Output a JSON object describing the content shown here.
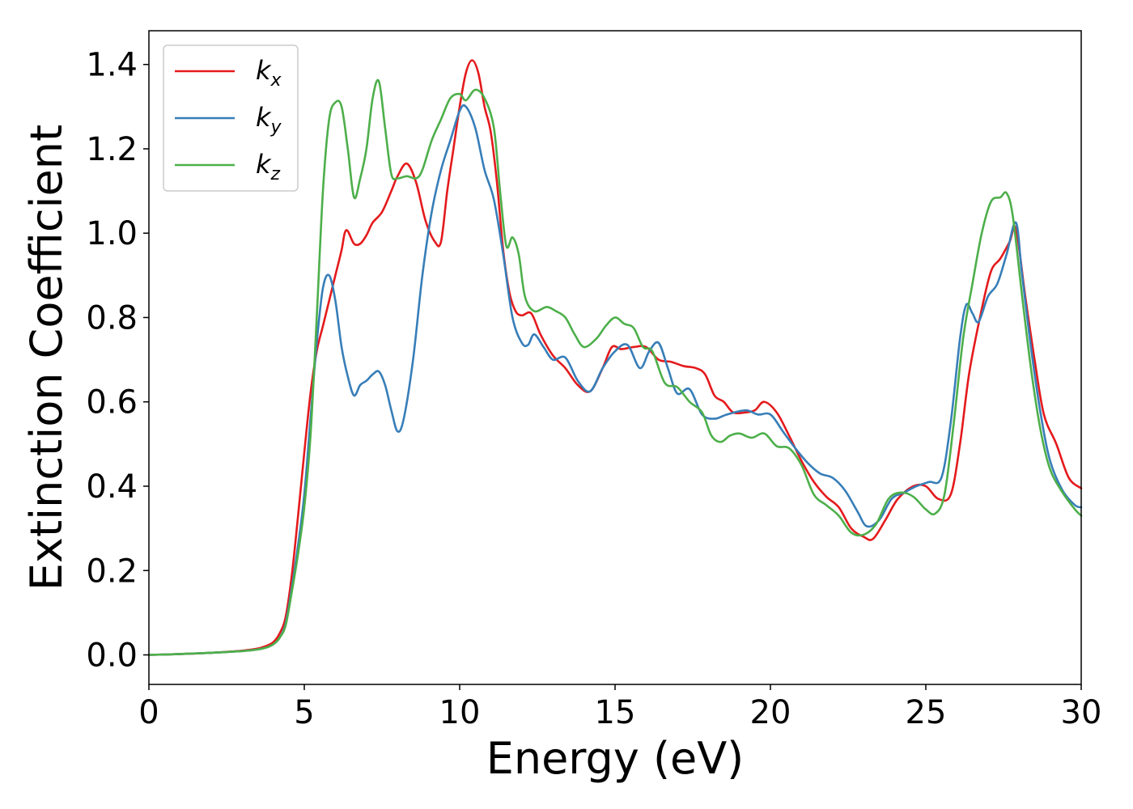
{
  "chart_data": {
    "type": "line",
    "title": "",
    "xlabel": "Energy (eV)",
    "ylabel": "Extinction Coefficient",
    "xlim": [
      0,
      30
    ],
    "ylim": [
      -0.07,
      1.48
    ],
    "xticks": [
      0,
      5,
      10,
      15,
      20,
      25,
      30
    ],
    "xtick_labels": [
      "0",
      "5",
      "10",
      "15",
      "20",
      "25",
      "30"
    ],
    "yticks": [
      0.0,
      0.2,
      0.4,
      0.6,
      0.8,
      1.0,
      1.2,
      1.4
    ],
    "ytick_labels": [
      "0.0",
      "0.2",
      "0.4",
      "0.6",
      "0.8",
      "1.0",
      "1.2",
      "1.4"
    ],
    "grid": false,
    "legend_position": "top-left",
    "series": [
      {
        "name": "k",
        "subscript": "x",
        "color": "#e41a1c",
        "points": [
          [
            0,
            0.0
          ],
          [
            1,
            0.002
          ],
          [
            2,
            0.005
          ],
          [
            3,
            0.01
          ],
          [
            3.5,
            0.015
          ],
          [
            3.8,
            0.022
          ],
          [
            4.0,
            0.03
          ],
          [
            4.2,
            0.05
          ],
          [
            4.4,
            0.09
          ],
          [
            4.6,
            0.19
          ],
          [
            4.8,
            0.33
          ],
          [
            5.0,
            0.48
          ],
          [
            5.2,
            0.62
          ],
          [
            5.4,
            0.72
          ],
          [
            5.6,
            0.78
          ],
          [
            5.8,
            0.84
          ],
          [
            6.0,
            0.9
          ],
          [
            6.2,
            0.96
          ],
          [
            6.3,
            1.0
          ],
          [
            6.4,
            1.005
          ],
          [
            6.6,
            0.975
          ],
          [
            6.8,
            0.975
          ],
          [
            7.0,
            0.995
          ],
          [
            7.2,
            1.025
          ],
          [
            7.5,
            1.05
          ],
          [
            7.8,
            1.1
          ],
          [
            8.0,
            1.135
          ],
          [
            8.3,
            1.165
          ],
          [
            8.6,
            1.12
          ],
          [
            8.9,
            1.03
          ],
          [
            9.2,
            0.98
          ],
          [
            9.4,
            0.98
          ],
          [
            9.6,
            1.1
          ],
          [
            9.8,
            1.2
          ],
          [
            10.0,
            1.3
          ],
          [
            10.2,
            1.38
          ],
          [
            10.4,
            1.41
          ],
          [
            10.6,
            1.38
          ],
          [
            10.8,
            1.3
          ],
          [
            11.0,
            1.24
          ],
          [
            11.2,
            1.12
          ],
          [
            11.4,
            0.96
          ],
          [
            11.6,
            0.86
          ],
          [
            11.8,
            0.815
          ],
          [
            12.0,
            0.805
          ],
          [
            12.3,
            0.81
          ],
          [
            12.6,
            0.76
          ],
          [
            13.0,
            0.71
          ],
          [
            13.4,
            0.68
          ],
          [
            13.8,
            0.64
          ],
          [
            14.2,
            0.625
          ],
          [
            14.6,
            0.68
          ],
          [
            14.9,
            0.73
          ],
          [
            15.2,
            0.725
          ],
          [
            15.6,
            0.73
          ],
          [
            16.0,
            0.73
          ],
          [
            16.4,
            0.7
          ],
          [
            16.8,
            0.695
          ],
          [
            17.2,
            0.685
          ],
          [
            17.6,
            0.68
          ],
          [
            17.9,
            0.665
          ],
          [
            18.2,
            0.615
          ],
          [
            18.5,
            0.6
          ],
          [
            18.8,
            0.575
          ],
          [
            19.2,
            0.575
          ],
          [
            19.5,
            0.58
          ],
          [
            19.8,
            0.6
          ],
          [
            20.2,
            0.575
          ],
          [
            20.6,
            0.52
          ],
          [
            21.0,
            0.46
          ],
          [
            21.4,
            0.41
          ],
          [
            21.8,
            0.375
          ],
          [
            22.2,
            0.35
          ],
          [
            22.6,
            0.3
          ],
          [
            23.0,
            0.28
          ],
          [
            23.3,
            0.275
          ],
          [
            23.7,
            0.32
          ],
          [
            24.1,
            0.37
          ],
          [
            24.6,
            0.4
          ],
          [
            25.0,
            0.4
          ],
          [
            25.4,
            0.37
          ],
          [
            25.8,
            0.38
          ],
          [
            26.1,
            0.5
          ],
          [
            26.4,
            0.67
          ],
          [
            26.8,
            0.82
          ],
          [
            27.1,
            0.91
          ],
          [
            27.4,
            0.94
          ],
          [
            27.7,
            0.98
          ],
          [
            27.9,
            1.01
          ],
          [
            28.2,
            0.85
          ],
          [
            28.5,
            0.7
          ],
          [
            28.8,
            0.57
          ],
          [
            29.2,
            0.5
          ],
          [
            29.6,
            0.42
          ],
          [
            30.0,
            0.395
          ]
        ]
      },
      {
        "name": "k",
        "subscript": "y",
        "color": "#377eb8",
        "points": [
          [
            0,
            0.0
          ],
          [
            1,
            0.002
          ],
          [
            2,
            0.005
          ],
          [
            3,
            0.009
          ],
          [
            3.5,
            0.013
          ],
          [
            3.8,
            0.018
          ],
          [
            4.0,
            0.025
          ],
          [
            4.2,
            0.04
          ],
          [
            4.4,
            0.075
          ],
          [
            4.6,
            0.16
          ],
          [
            4.8,
            0.26
          ],
          [
            5.0,
            0.38
          ],
          [
            5.2,
            0.56
          ],
          [
            5.4,
            0.74
          ],
          [
            5.6,
            0.87
          ],
          [
            5.8,
            0.9
          ],
          [
            6.0,
            0.84
          ],
          [
            6.2,
            0.73
          ],
          [
            6.4,
            0.66
          ],
          [
            6.6,
            0.615
          ],
          [
            6.8,
            0.64
          ],
          [
            7.0,
            0.65
          ],
          [
            7.2,
            0.665
          ],
          [
            7.4,
            0.672
          ],
          [
            7.6,
            0.64
          ],
          [
            7.8,
            0.58
          ],
          [
            8.0,
            0.53
          ],
          [
            8.2,
            0.56
          ],
          [
            8.5,
            0.7
          ],
          [
            8.8,
            0.9
          ],
          [
            9.1,
            1.05
          ],
          [
            9.4,
            1.15
          ],
          [
            9.7,
            1.22
          ],
          [
            10.0,
            1.29
          ],
          [
            10.2,
            1.3
          ],
          [
            10.5,
            1.25
          ],
          [
            10.8,
            1.15
          ],
          [
            11.1,
            1.08
          ],
          [
            11.4,
            0.95
          ],
          [
            11.7,
            0.8
          ],
          [
            12.0,
            0.74
          ],
          [
            12.2,
            0.735
          ],
          [
            12.4,
            0.76
          ],
          [
            12.7,
            0.73
          ],
          [
            13.0,
            0.7
          ],
          [
            13.4,
            0.705
          ],
          [
            13.8,
            0.65
          ],
          [
            14.2,
            0.625
          ],
          [
            14.6,
            0.68
          ],
          [
            15.0,
            0.72
          ],
          [
            15.4,
            0.735
          ],
          [
            15.8,
            0.68
          ],
          [
            16.1,
            0.72
          ],
          [
            16.4,
            0.74
          ],
          [
            16.7,
            0.68
          ],
          [
            17.0,
            0.62
          ],
          [
            17.4,
            0.63
          ],
          [
            17.8,
            0.57
          ],
          [
            18.2,
            0.56
          ],
          [
            18.6,
            0.57
          ],
          [
            19.2,
            0.58
          ],
          [
            19.6,
            0.57
          ],
          [
            20.0,
            0.57
          ],
          [
            20.4,
            0.53
          ],
          [
            20.8,
            0.49
          ],
          [
            21.2,
            0.455
          ],
          [
            21.6,
            0.43
          ],
          [
            22.0,
            0.42
          ],
          [
            22.4,
            0.39
          ],
          [
            22.8,
            0.34
          ],
          [
            23.1,
            0.305
          ],
          [
            23.5,
            0.32
          ],
          [
            23.9,
            0.37
          ],
          [
            24.3,
            0.385
          ],
          [
            24.7,
            0.4
          ],
          [
            25.1,
            0.41
          ],
          [
            25.5,
            0.42
          ],
          [
            25.8,
            0.55
          ],
          [
            26.1,
            0.75
          ],
          [
            26.3,
            0.83
          ],
          [
            26.5,
            0.81
          ],
          [
            26.7,
            0.79
          ],
          [
            27.0,
            0.85
          ],
          [
            27.3,
            0.88
          ],
          [
            27.6,
            0.95
          ],
          [
            27.9,
            1.025
          ],
          [
            28.1,
            0.9
          ],
          [
            28.4,
            0.72
          ],
          [
            28.7,
            0.57
          ],
          [
            29.0,
            0.46
          ],
          [
            29.4,
            0.39
          ],
          [
            29.8,
            0.355
          ],
          [
            30.0,
            0.35
          ]
        ]
      },
      {
        "name": "k",
        "subscript": "z",
        "color": "#4daf4a",
        "points": [
          [
            0,
            0.0
          ],
          [
            1,
            0.002
          ],
          [
            2,
            0.005
          ],
          [
            3,
            0.009
          ],
          [
            3.5,
            0.013
          ],
          [
            3.8,
            0.018
          ],
          [
            4.0,
            0.025
          ],
          [
            4.2,
            0.04
          ],
          [
            4.4,
            0.07
          ],
          [
            4.6,
            0.15
          ],
          [
            4.8,
            0.24
          ],
          [
            5.0,
            0.35
          ],
          [
            5.2,
            0.52
          ],
          [
            5.4,
            0.8
          ],
          [
            5.6,
            1.1
          ],
          [
            5.8,
            1.27
          ],
          [
            6.0,
            1.31
          ],
          [
            6.2,
            1.3
          ],
          [
            6.4,
            1.2
          ],
          [
            6.6,
            1.085
          ],
          [
            6.8,
            1.13
          ],
          [
            7.0,
            1.2
          ],
          [
            7.2,
            1.32
          ],
          [
            7.4,
            1.36
          ],
          [
            7.6,
            1.25
          ],
          [
            7.8,
            1.14
          ],
          [
            8.0,
            1.13
          ],
          [
            8.3,
            1.135
          ],
          [
            8.6,
            1.13
          ],
          [
            8.8,
            1.15
          ],
          [
            9.1,
            1.22
          ],
          [
            9.4,
            1.27
          ],
          [
            9.7,
            1.32
          ],
          [
            10.0,
            1.33
          ],
          [
            10.2,
            1.315
          ],
          [
            10.5,
            1.34
          ],
          [
            10.8,
            1.32
          ],
          [
            11.1,
            1.25
          ],
          [
            11.3,
            1.1
          ],
          [
            11.5,
            0.97
          ],
          [
            11.7,
            0.99
          ],
          [
            11.9,
            0.95
          ],
          [
            12.1,
            0.85
          ],
          [
            12.4,
            0.815
          ],
          [
            12.8,
            0.825
          ],
          [
            13.1,
            0.815
          ],
          [
            13.4,
            0.8
          ],
          [
            13.7,
            0.76
          ],
          [
            14.0,
            0.73
          ],
          [
            14.4,
            0.75
          ],
          [
            14.7,
            0.78
          ],
          [
            15.0,
            0.8
          ],
          [
            15.3,
            0.785
          ],
          [
            15.6,
            0.775
          ],
          [
            15.9,
            0.73
          ],
          [
            16.2,
            0.72
          ],
          [
            16.6,
            0.645
          ],
          [
            17.0,
            0.635
          ],
          [
            17.4,
            0.6
          ],
          [
            17.8,
            0.575
          ],
          [
            18.1,
            0.52
          ],
          [
            18.4,
            0.505
          ],
          [
            18.7,
            0.52
          ],
          [
            19.0,
            0.525
          ],
          [
            19.4,
            0.515
          ],
          [
            19.8,
            0.525
          ],
          [
            20.2,
            0.495
          ],
          [
            20.6,
            0.49
          ],
          [
            21.0,
            0.45
          ],
          [
            21.4,
            0.38
          ],
          [
            21.8,
            0.355
          ],
          [
            22.2,
            0.33
          ],
          [
            22.6,
            0.29
          ],
          [
            23.0,
            0.285
          ],
          [
            23.4,
            0.31
          ],
          [
            23.8,
            0.37
          ],
          [
            24.2,
            0.385
          ],
          [
            24.6,
            0.375
          ],
          [
            25.0,
            0.345
          ],
          [
            25.3,
            0.335
          ],
          [
            25.6,
            0.38
          ],
          [
            25.9,
            0.55
          ],
          [
            26.2,
            0.75
          ],
          [
            26.5,
            0.88
          ],
          [
            26.8,
            1.0
          ],
          [
            27.1,
            1.075
          ],
          [
            27.4,
            1.085
          ],
          [
            27.6,
            1.095
          ],
          [
            27.8,
            1.04
          ],
          [
            28.1,
            0.85
          ],
          [
            28.4,
            0.67
          ],
          [
            28.7,
            0.53
          ],
          [
            29.0,
            0.44
          ],
          [
            29.4,
            0.385
          ],
          [
            29.8,
            0.345
          ],
          [
            30.0,
            0.33
          ]
        ]
      }
    ]
  }
}
